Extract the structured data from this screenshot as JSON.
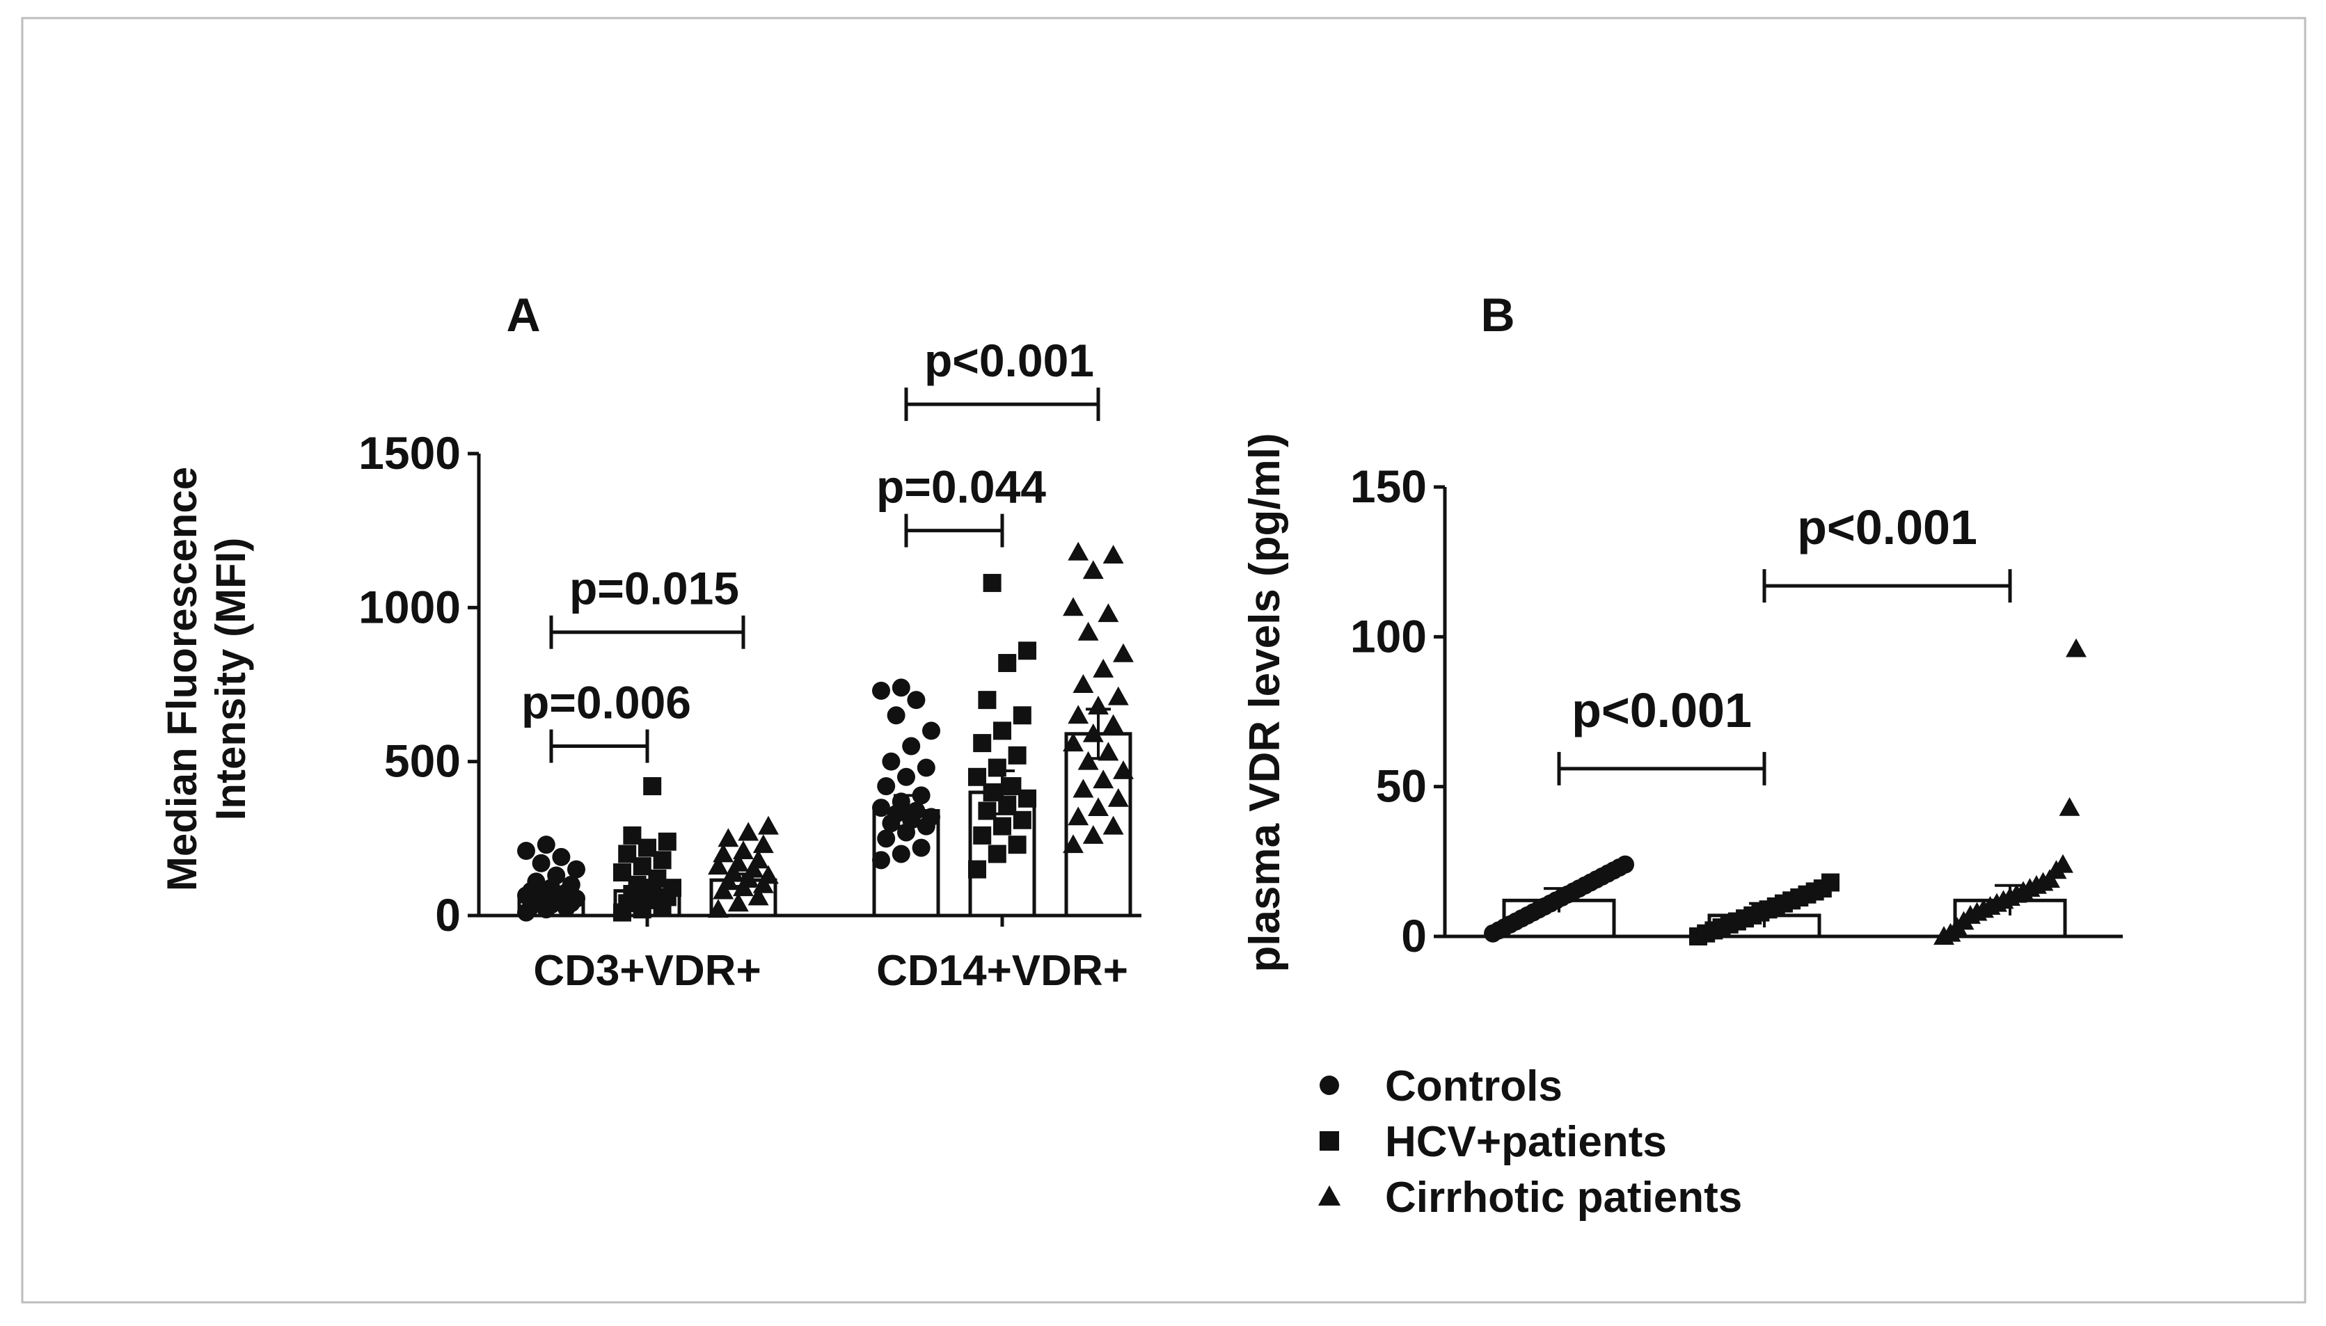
{
  "chart_data": [
    {
      "panel_label": "A",
      "type": "bar",
      "ylabel": "Median Fluorescence\nIntensity (MFI)",
      "ylim": [
        0,
        1500
      ],
      "yticks": [
        0,
        500,
        1000,
        1500
      ],
      "categories": [
        "CD3+VDR+",
        "CD14+VDR+"
      ],
      "series": [
        {
          "name": "Controls",
          "marker": "circle",
          "values": [
            60,
            340
          ],
          "errors": [
            15,
            50
          ],
          "points": [
            [
              10,
              20,
              25,
              30,
              35,
              40,
              45,
              50,
              55,
              60,
              60,
              65,
              70,
              75,
              80,
              90,
              100,
              110,
              130,
              150,
              170,
              190,
              210,
              230
            ],
            [
              180,
              200,
              220,
              250,
              270,
              290,
              300,
              310,
              320,
              330,
              340,
              350,
              370,
              390,
              420,
              450,
              480,
              500,
              550,
              600,
              650,
              700,
              730,
              740
            ]
          ]
        },
        {
          "name": "HCV+patients",
          "marker": "square",
          "values": [
            80,
            400
          ],
          "errors": [
            35,
            70
          ],
          "points": [
            [
              10,
              20,
              30,
              40,
              50,
              60,
              70,
              80,
              90,
              100,
              120,
              140,
              160,
              180,
              200,
              220,
              240,
              260,
              420
            ],
            [
              150,
              200,
              230,
              260,
              290,
              310,
              340,
              360,
              380,
              400,
              420,
              450,
              480,
              520,
              560,
              600,
              650,
              700,
              820,
              860,
              1080
            ]
          ]
        },
        {
          "name": "Cirrhotic patients",
          "marker": "triangle",
          "values": [
            115,
            590
          ],
          "errors": [
            20,
            80
          ],
          "points": [
            [
              20,
              40,
              60,
              80,
              90,
              100,
              110,
              120,
              130,
              140,
              150,
              160,
              170,
              180,
              200,
              210,
              230,
              250,
              270,
              290
            ],
            [
              230,
              260,
              290,
              320,
              350,
              380,
              410,
              440,
              470,
              500,
              530,
              560,
              590,
              620,
              650,
              680,
              710,
              750,
              800,
              850,
              920,
              980,
              1000,
              1120,
              1170,
              1180
            ]
          ]
        }
      ],
      "annotations": [
        {
          "text": "p=0.006",
          "from": [
            0,
            0
          ],
          "to": [
            0,
            1
          ],
          "y": 550
        },
        {
          "text": "p=0.015",
          "from": [
            0,
            0
          ],
          "to": [
            0,
            2
          ],
          "y": 920
        },
        {
          "text": "p=0.044",
          "from": [
            1,
            0
          ],
          "to": [
            1,
            1
          ],
          "y": 1250
        },
        {
          "text": "p<0.001",
          "from": [
            1,
            0
          ],
          "to": [
            1,
            2
          ],
          "y": 1660
        }
      ]
    },
    {
      "panel_label": "B",
      "type": "bar",
      "ylabel": "plasma VDR levels (pg/ml)",
      "ylim": [
        0,
        150
      ],
      "yticks": [
        0,
        50,
        100,
        150
      ],
      "categories": [
        "Controls",
        "HCV+patients",
        "Cirrhotic patients"
      ],
      "series": [
        {
          "name": "Controls",
          "marker": "circle",
          "value": 12,
          "error": 4,
          "points": [
            1,
            2,
            3,
            4,
            5,
            6,
            7,
            8,
            9,
            10,
            11,
            12,
            13,
            14,
            15,
            16,
            17,
            18,
            19,
            20,
            21,
            22,
            23,
            24
          ]
        },
        {
          "name": "HCV+patients",
          "marker": "square",
          "value": 7,
          "error": 4,
          "points": [
            0,
            1,
            2,
            3,
            4,
            5,
            6,
            7,
            8,
            9,
            10,
            11,
            12,
            13,
            14,
            15,
            16,
            18
          ]
        },
        {
          "name": "Cirrhotic patients",
          "marker": "triangle",
          "value": 12,
          "error": 5,
          "points": [
            0,
            1,
            3,
            5,
            7,
            8,
            9,
            10,
            11,
            12,
            13,
            14,
            15,
            16,
            17,
            18,
            19,
            22,
            24,
            43,
            96
          ]
        }
      ],
      "annotations": [
        {
          "text": "p<0.001",
          "from": 0,
          "to": 1,
          "y": 56
        },
        {
          "text": "p<0.001",
          "from": 1,
          "to": 2,
          "y": 117
        }
      ],
      "legend": {
        "placement": "bottom",
        "entries": [
          {
            "label": "Controls",
            "marker": "circle"
          },
          {
            "label": "HCV+patients",
            "marker": "square"
          },
          {
            "label": "Cirrhotic patients",
            "marker": "triangle"
          }
        ]
      }
    }
  ]
}
